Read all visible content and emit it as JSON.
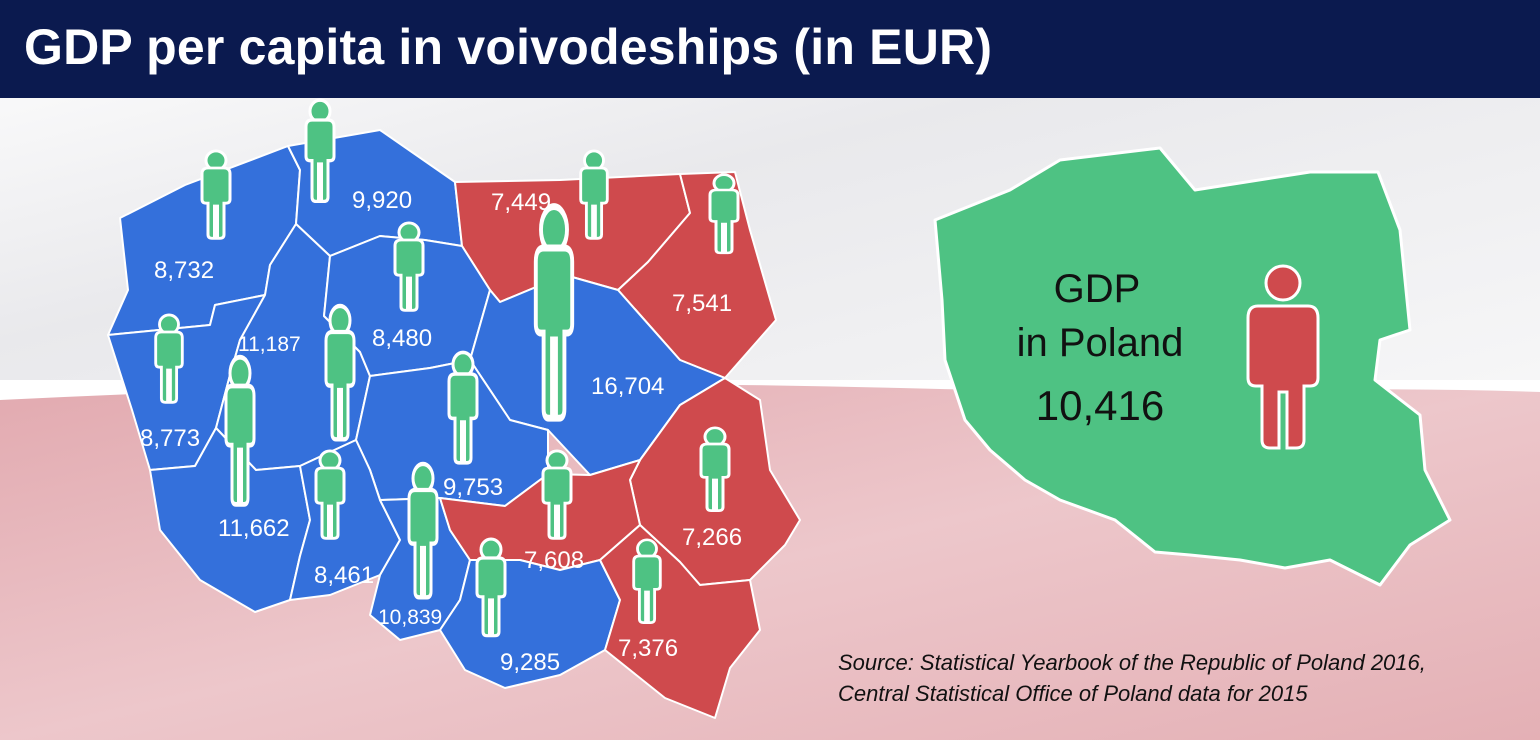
{
  "title": "GDP per capita in voivodeships (in EUR)",
  "colors": {
    "above_average": "#3470db",
    "below_average": "#cf4a4d",
    "person": "#4ec283",
    "person_outline": "#ffffff",
    "poland_fill": "#4ec283",
    "header_bg": "#0b1a4f"
  },
  "voivodeships": [
    {
      "value": "8,732",
      "gdp": 8732
    },
    {
      "value": "9,920",
      "gdp": 9920
    },
    {
      "value": "7,449",
      "gdp": 7449
    },
    {
      "value": "7,541",
      "gdp": 7541
    },
    {
      "value": "11,187",
      "gdp": 11187
    },
    {
      "value": "8,480",
      "gdp": 8480
    },
    {
      "value": "16,704",
      "gdp": 16704
    },
    {
      "value": "8,773",
      "gdp": 8773
    },
    {
      "value": "9,753",
      "gdp": 9753
    },
    {
      "value": "11,662",
      "gdp": 11662
    },
    {
      "value": "7,266",
      "gdp": 7266
    },
    {
      "value": "7,608",
      "gdp": 7608
    },
    {
      "value": "8,461",
      "gdp": 8461
    },
    {
      "value": "10,839",
      "gdp": 10839
    },
    {
      "value": "9,285",
      "gdp": 9285
    },
    {
      "value": "7,376",
      "gdp": 7376
    }
  ],
  "summary": {
    "line1": "GDP",
    "line2": "in Poland",
    "value": "10,416"
  },
  "source": {
    "line1": "Source: Statistical Yearbook of the Republic of Poland 2016,",
    "line2": "Central Statistical Office of Poland data for 2015"
  }
}
